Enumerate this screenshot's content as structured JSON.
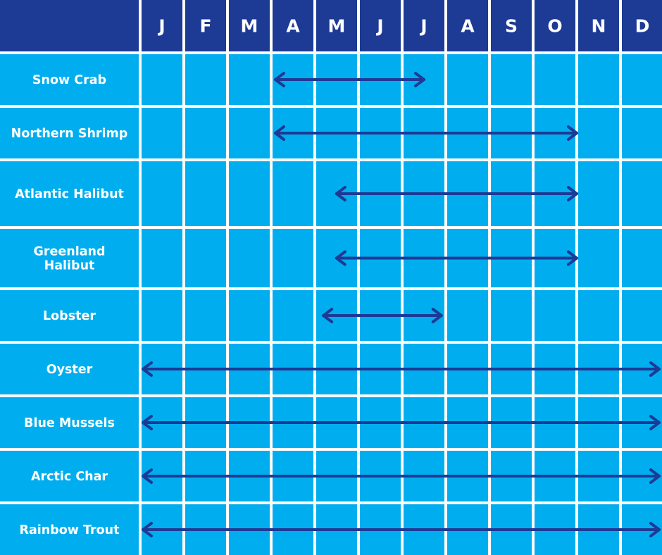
{
  "chart_data": {
    "type": "table",
    "months": [
      "J",
      "F",
      "M",
      "A",
      "M",
      "J",
      "J",
      "A",
      "S",
      "O",
      "N",
      "D"
    ],
    "rows": [
      {
        "label": [
          "Snow Crab"
        ],
        "start": 3.0,
        "end": 6.5
      },
      {
        "label": [
          "Northern Shrimp"
        ],
        "start": 3.0,
        "end": 10.0
      },
      {
        "label": [
          "Atlantic Halibut"
        ],
        "start": 4.4,
        "end": 10.0
      },
      {
        "label": [
          "Greenland",
          "Halibut"
        ],
        "start": 4.4,
        "end": 10.0
      },
      {
        "label": [
          "Lobster"
        ],
        "start": 4.1,
        "end": 6.9
      },
      {
        "label": [
          "Oyster"
        ],
        "start": 0.0,
        "end": 12.0
      },
      {
        "label": [
          "Blue Mussels"
        ],
        "start": 0.0,
        "end": 12.0
      },
      {
        "label": [
          "Arctic Char"
        ],
        "start": 0.0,
        "end": 12.0
      },
      {
        "label": [
          "Rainbow Trout"
        ],
        "start": 0.0,
        "end": 12.0
      }
    ],
    "colors": {
      "header": "#1d3a95",
      "cell": "#00aeef",
      "arrow": "#1d3a95",
      "text": "#ffffff"
    }
  }
}
